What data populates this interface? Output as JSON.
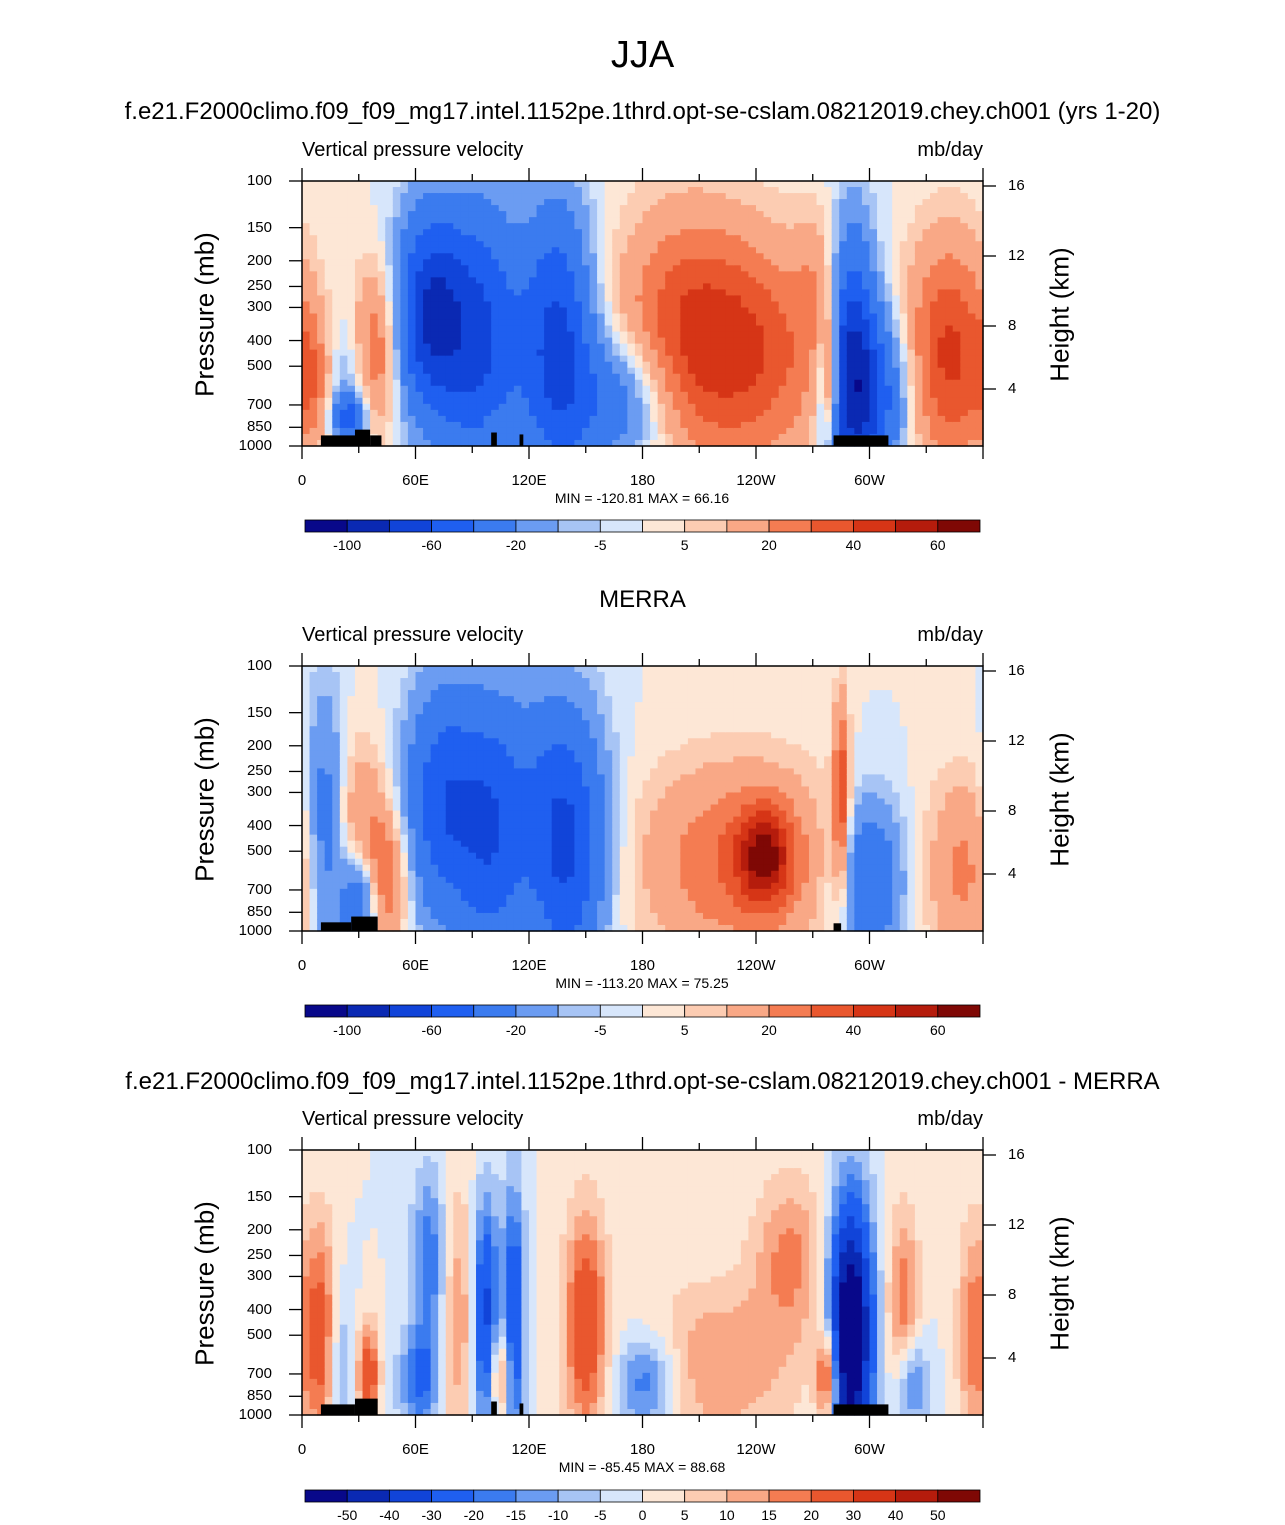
{
  "figure_title": "JJA",
  "chart_data": [
    {
      "type": "heatmap",
      "title": "f.e21.F2000climo.f09_f09_mg17.intel.1152pe.1thrd.opt-se-cslam.08212019.chey.ch001 (yrs 1-20)",
      "left_string": "Vertical pressure velocity",
      "right_string": "mb/day",
      "ylabel": "Pressure (mb)",
      "y2label": "Height (km)",
      "yticks": [
        "100",
        "150",
        "200",
        "250",
        "300",
        "400",
        "500",
        "700",
        "850",
        "1000"
      ],
      "y2ticks": [
        "16",
        "12",
        "8",
        "4"
      ],
      "xticks": [
        "0",
        "60E",
        "120E",
        "180",
        "120W",
        "60W"
      ],
      "xlim": [
        0,
        360
      ],
      "ylim": [
        1000,
        100
      ],
      "min_max": "MIN = -120.81  MAX =  66.16",
      "colorbar_labels": [
        "-100",
        "-60",
        "-20",
        "-5",
        "5",
        "20",
        "40",
        "60"
      ],
      "colorbar_levels": [
        -120,
        -100,
        -80,
        -60,
        -40,
        -20,
        -10,
        -5,
        0,
        5,
        10,
        20,
        30,
        40,
        50,
        60,
        70
      ],
      "features": [
        {
          "lon": 22,
          "p": 550,
          "v": -15,
          "sx": 8,
          "sy": 0.4
        },
        {
          "lon": 25,
          "p": 780,
          "v": -45,
          "sx": 6,
          "sy": 0.15
        },
        {
          "lon": 40,
          "p": 420,
          "v": 32,
          "sx": 9,
          "sy": 0.5
        },
        {
          "lon": 6,
          "p": 550,
          "v": 22,
          "sx": 8,
          "sy": 0.4
        },
        {
          "lon": 68,
          "p": 320,
          "v": -78,
          "sx": 13,
          "sy": 0.6
        },
        {
          "lon": 95,
          "p": 400,
          "v": -60,
          "sx": 15,
          "sy": 0.8
        },
        {
          "lon": 135,
          "p": 400,
          "v": -65,
          "sx": 13,
          "sy": 0.8
        },
        {
          "lon": 165,
          "p": 680,
          "v": -35,
          "sx": 20,
          "sy": 0.4
        },
        {
          "lon": 105,
          "p": 820,
          "v": 8,
          "sx": 6,
          "sy": 0.12
        },
        {
          "lon": 230,
          "p": 450,
          "v": 40,
          "sx": 35,
          "sy": 0.7
        },
        {
          "lon": 200,
          "p": 300,
          "v": 18,
          "sx": 25,
          "sy": 0.7
        },
        {
          "lon": 275,
          "p": 250,
          "v": 15,
          "sx": 8,
          "sy": 0.5
        },
        {
          "lon": 290,
          "p": 500,
          "v": -80,
          "sx": 9,
          "sy": 0.8
        },
        {
          "lon": 303,
          "p": 650,
          "v": -50,
          "sx": 12,
          "sy": 0.5
        },
        {
          "lon": 342,
          "p": 450,
          "v": 42,
          "sx": 16,
          "sy": 0.7
        },
        {
          "lon": 280,
          "p": 550,
          "v": 55,
          "sx": 2,
          "sy": 0.4
        }
      ],
      "terrain": [
        [
          10,
          30,
          0.55
        ],
        [
          28,
          36,
          0.85
        ],
        [
          36,
          42,
          0.55
        ],
        [
          100,
          103,
          0.7
        ],
        [
          115,
          117,
          0.6
        ],
        [
          281,
          310,
          0.55
        ]
      ]
    },
    {
      "type": "heatmap",
      "title": "MERRA",
      "left_string": "Vertical pressure velocity",
      "right_string": "mb/day",
      "ylabel": "Pressure (mb)",
      "y2label": "Height (km)",
      "yticks": [
        "100",
        "150",
        "200",
        "250",
        "300",
        "400",
        "500",
        "700",
        "850",
        "1000"
      ],
      "y2ticks": [
        "16",
        "12",
        "8",
        "4"
      ],
      "xticks": [
        "0",
        "60E",
        "120E",
        "180",
        "120W",
        "60W"
      ],
      "xlim": [
        0,
        360
      ],
      "ylim": [
        1000,
        100
      ],
      "min_max": "MIN = -113.20  MAX =  75.25",
      "colorbar_labels": [
        "-100",
        "-60",
        "-20",
        "-5",
        "5",
        "20",
        "40",
        "60"
      ],
      "colorbar_levels": [
        -120,
        -100,
        -80,
        -60,
        -40,
        -20,
        -10,
        -5,
        0,
        5,
        10,
        20,
        30,
        40,
        50,
        60,
        70
      ],
      "features": [
        {
          "lon": 12,
          "p": 400,
          "v": -30,
          "sx": 7,
          "sy": 0.8
        },
        {
          "lon": 30,
          "p": 780,
          "v": -40,
          "sx": 7,
          "sy": 0.3
        },
        {
          "lon": 45,
          "p": 650,
          "v": 30,
          "sx": 8,
          "sy": 0.4
        },
        {
          "lon": 32,
          "p": 380,
          "v": 18,
          "sx": 10,
          "sy": 0.5
        },
        {
          "lon": 75,
          "p": 330,
          "v": -55,
          "sx": 14,
          "sy": 0.7
        },
        {
          "lon": 100,
          "p": 450,
          "v": -45,
          "sx": 12,
          "sy": 0.8
        },
        {
          "lon": 140,
          "p": 520,
          "v": -55,
          "sx": 14,
          "sy": 0.8
        },
        {
          "lon": 125,
          "p": 300,
          "v": -20,
          "sx": 20,
          "sy": 0.7
        },
        {
          "lon": 230,
          "p": 550,
          "v": 30,
          "sx": 35,
          "sy": 0.6
        },
        {
          "lon": 245,
          "p": 520,
          "v": 42,
          "sx": 10,
          "sy": 0.3
        },
        {
          "lon": 285,
          "p": 320,
          "v": 40,
          "sx": 3,
          "sy": 0.6
        },
        {
          "lon": 300,
          "p": 650,
          "v": -40,
          "sx": 12,
          "sy": 0.5
        },
        {
          "lon": 350,
          "p": 600,
          "v": 22,
          "sx": 14,
          "sy": 0.6
        }
      ],
      "terrain": [
        [
          10,
          26,
          0.45
        ],
        [
          26,
          40,
          0.75
        ],
        [
          281,
          285,
          0.4
        ]
      ]
    },
    {
      "type": "heatmap",
      "title": "f.e21.F2000climo.f09_f09_mg17.intel.1152pe.1thrd.opt-se-cslam.08212019.chey.ch001 - MERRA",
      "left_string": "Vertical pressure velocity",
      "right_string": "mb/day",
      "ylabel": "Pressure (mb)",
      "y2label": "Height (km)",
      "yticks": [
        "100",
        "150",
        "200",
        "250",
        "300",
        "400",
        "500",
        "700",
        "850",
        "1000"
      ],
      "y2ticks": [
        "16",
        "12",
        "8",
        "4"
      ],
      "xticks": [
        "0",
        "60E",
        "120E",
        "180",
        "120W",
        "60W"
      ],
      "xlim": [
        0,
        360
      ],
      "ylim": [
        1000,
        100
      ],
      "min_max": "MIN = -85.45  MAX =  88.68",
      "colorbar_labels": [
        "-50",
        "-40",
        "-30",
        "-20",
        "-15",
        "-10",
        "-5",
        "0",
        "5",
        "10",
        "15",
        "20",
        "30",
        "40",
        "50"
      ],
      "colorbar_levels": [
        -60,
        -50,
        -40,
        -30,
        -20,
        -15,
        -10,
        -5,
        0,
        5,
        10,
        15,
        20,
        30,
        40,
        50,
        60
      ],
      "features": [
        {
          "lon": 10,
          "p": 500,
          "v": 25,
          "sx": 6,
          "sy": 0.7
        },
        {
          "lon": 20,
          "p": 650,
          "v": -12,
          "sx": 5,
          "sy": 0.5
        },
        {
          "lon": 35,
          "p": 700,
          "v": 28,
          "sx": 4,
          "sy": 0.3
        },
        {
          "lon": 62,
          "p": 750,
          "v": -20,
          "sx": 8,
          "sy": 0.3
        },
        {
          "lon": 68,
          "p": 280,
          "v": -22,
          "sx": 7,
          "sy": 0.6
        },
        {
          "lon": 82,
          "p": 420,
          "v": 16,
          "sx": 8,
          "sy": 0.8
        },
        {
          "lon": 97,
          "p": 420,
          "v": -35,
          "sx": 5,
          "sy": 0.7
        },
        {
          "lon": 112,
          "p": 430,
          "v": -30,
          "sx": 4,
          "sy": 0.8
        },
        {
          "lon": 105,
          "p": 700,
          "v": 22,
          "sx": 4,
          "sy": 0.3
        },
        {
          "lon": 150,
          "p": 450,
          "v": 28,
          "sx": 8,
          "sy": 0.7
        },
        {
          "lon": 182,
          "p": 750,
          "v": -22,
          "sx": 12,
          "sy": 0.3
        },
        {
          "lon": 220,
          "p": 650,
          "v": 15,
          "sx": 30,
          "sy": 0.5
        },
        {
          "lon": 258,
          "p": 250,
          "v": 16,
          "sx": 14,
          "sy": 0.5
        },
        {
          "lon": 290,
          "p": 500,
          "v": -70,
          "sx": 8,
          "sy": 0.8
        },
        {
          "lon": 278,
          "p": 720,
          "v": 35,
          "sx": 4,
          "sy": 0.3
        },
        {
          "lon": 318,
          "p": 400,
          "v": 20,
          "sx": 6,
          "sy": 0.6
        },
        {
          "lon": 322,
          "p": 750,
          "v": -22,
          "sx": 6,
          "sy": 0.3
        },
        {
          "lon": 355,
          "p": 500,
          "v": 18,
          "sx": 6,
          "sy": 0.7
        }
      ],
      "terrain": [
        [
          10,
          28,
          0.55
        ],
        [
          28,
          40,
          0.85
        ],
        [
          100,
          103,
          0.7
        ],
        [
          115,
          117,
          0.6
        ],
        [
          281,
          310,
          0.55
        ]
      ]
    }
  ],
  "colors": {
    "colormap": [
      "#08088a",
      "#0a29b3",
      "#1144d9",
      "#1f5ff0",
      "#3b7bef",
      "#6b9cf2",
      "#a7c4f5",
      "#d7e6fb",
      "#fde7d6",
      "#fcccb2",
      "#f9a886",
      "#f47c52",
      "#e9572e",
      "#d63516",
      "#b51c0c",
      "#7f0805"
    ],
    "terrain": "#000000"
  }
}
